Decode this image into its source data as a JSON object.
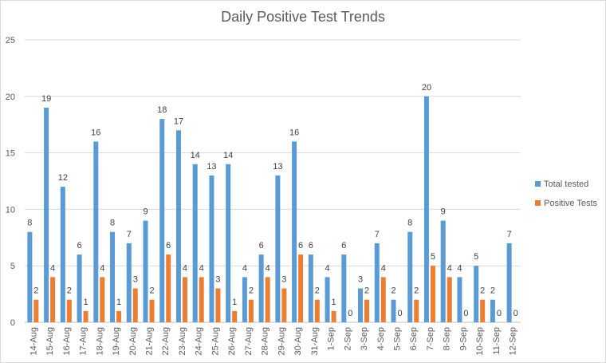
{
  "chart_data": {
    "type": "bar",
    "title": "Daily Positive Test Trends",
    "xlabel": "",
    "ylabel": "",
    "ylim": [
      0,
      25
    ],
    "yticks": [
      0,
      5,
      10,
      15,
      20,
      25
    ],
    "grid": true,
    "legend_position": "right",
    "categories": [
      "14-Aug",
      "15-Aug",
      "16-Aug",
      "17-Aug",
      "18-Aug",
      "19-Aug",
      "20-Aug",
      "21-Aug",
      "22-Aug",
      "23-Aug",
      "24-Aug",
      "25-Aug",
      "26-Aug",
      "27-Aug",
      "28-Aug",
      "29-Aug",
      "30-Aug",
      "31-Aug",
      "1-Sep",
      "2-Sep",
      "3-Sep",
      "4-Sep",
      "5-Sep",
      "6-Sep",
      "7-Sep",
      "8-Sep",
      "9-Sep",
      "10-Sep",
      "11-Sep",
      "12-Sep"
    ],
    "series": [
      {
        "name": "Total tested",
        "color": "#5b9bd5",
        "values": [
          8,
          19,
          12,
          6,
          16,
          8,
          7,
          9,
          18,
          17,
          14,
          13,
          14,
          4,
          6,
          13,
          16,
          6,
          4,
          6,
          3,
          7,
          2,
          8,
          20,
          9,
          4,
          5,
          2,
          7
        ]
      },
      {
        "name": "Positive Tests",
        "color": "#ed7d31",
        "values": [
          2,
          4,
          2,
          1,
          4,
          1,
          3,
          2,
          6,
          4,
          4,
          3,
          1,
          2,
          4,
          3,
          6,
          2,
          1,
          0,
          2,
          4,
          0,
          2,
          5,
          4,
          0,
          2,
          0,
          0
        ]
      }
    ]
  }
}
